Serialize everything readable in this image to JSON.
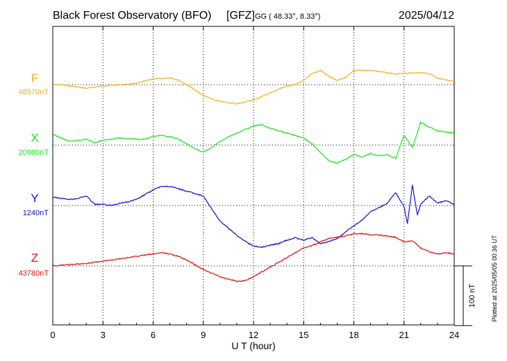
{
  "header": {
    "observatory": "Black Forest Observatory (BFO)",
    "institute": "[GFZ]",
    "coords": "GG ( 48.33°,   8.33°)",
    "date": "2025/04/12"
  },
  "footer": {
    "plotted": "Plotted at 2025/05/05 00:36 UT"
  },
  "scale_bar": {
    "label": "100 nT",
    "value_nT": 100
  },
  "chart_data": {
    "type": "line",
    "xlabel": "U T (hour)",
    "xlim": [
      0,
      24
    ],
    "xticks": [
      0,
      3,
      6,
      9,
      12,
      15,
      18,
      21,
      24
    ],
    "xtick_labels": [
      "0",
      "3",
      "6",
      "9",
      "12",
      "15",
      "18",
      "21",
      "24"
    ],
    "grid": true,
    "series": [
      {
        "name": "F",
        "baseline_label": "48570nT",
        "baseline_nT": 48570,
        "color": "#f0b020",
        "x": [
          0,
          0.5,
          1,
          1.5,
          2,
          2.5,
          3,
          3.5,
          4,
          4.5,
          5,
          5.5,
          6,
          6.5,
          7,
          7.5,
          8,
          8.5,
          9,
          9.5,
          10,
          10.5,
          11,
          11.5,
          12,
          12.5,
          13,
          13.5,
          14,
          14.5,
          15,
          15.5,
          16,
          16.5,
          17,
          17.5,
          18,
          18.5,
          19,
          19.5,
          20,
          20.5,
          21,
          21.5,
          22,
          22.5,
          23,
          23.5,
          24
        ],
        "y": [
          48570,
          48570,
          48568,
          48566,
          48564,
          48566,
          48568,
          48569,
          48570,
          48571,
          48572,
          48576,
          48580,
          48580,
          48582,
          48578,
          48570,
          48561,
          48552,
          48546,
          48542,
          48540,
          48538,
          48541,
          48545,
          48550,
          48556,
          48562,
          48568,
          48570,
          48577,
          48588,
          48594,
          48584,
          48577,
          48582,
          48594,
          48594,
          48594,
          48592,
          48590,
          48588,
          48589,
          48590,
          48590,
          48588,
          48581,
          48578,
          48576
        ]
      },
      {
        "name": "X",
        "baseline_label": "20980nT",
        "baseline_nT": 20980,
        "color": "#20e020",
        "x": [
          0,
          0.5,
          1,
          1.5,
          2,
          2.5,
          3,
          3.5,
          4,
          4.5,
          5,
          5.5,
          6,
          6.5,
          7,
          7.5,
          8,
          8.5,
          9,
          9.5,
          10,
          10.5,
          11,
          11.5,
          12,
          12.5,
          13,
          13.5,
          14,
          14.5,
          15,
          15.5,
          16,
          16.5,
          17,
          17.5,
          18,
          18.5,
          19,
          19.5,
          20,
          20.5,
          21,
          21.5,
          22,
          22.5,
          23,
          23.5,
          24
        ],
        "y": [
          20998,
          20992,
          20986,
          20988,
          20990,
          20984,
          20988,
          20990,
          20992,
          20991,
          20990,
          20990,
          20994,
          20996,
          20994,
          20990,
          20982,
          20974,
          20968,
          20976,
          20986,
          20994,
          21000,
          21006,
          21012,
          21014,
          21008,
          21004,
          21000,
          20996,
          20992,
          20982,
          20968,
          20954,
          20950,
          20956,
          20964,
          20960,
          20966,
          20962,
          20964,
          20958,
          20996,
          20976,
          21018,
          21010,
          21004,
          21002,
          21000
        ]
      },
      {
        "name": "Y",
        "baseline_label": "1240nT",
        "baseline_nT": 1240,
        "color": "#1010d0",
        "x": [
          0,
          0.5,
          1,
          1.5,
          2,
          2.5,
          3,
          3.5,
          4,
          4.5,
          5,
          5.5,
          6,
          6.5,
          7,
          7.5,
          8,
          8.5,
          9,
          9.5,
          10,
          10.5,
          11,
          11.5,
          12,
          12.5,
          13,
          13.5,
          14,
          14.5,
          15,
          15.5,
          16,
          16.5,
          17,
          17.5,
          18,
          18.5,
          19,
          19.5,
          20,
          20.5,
          21,
          21.2,
          21.5,
          21.8,
          22,
          22.5,
          23,
          23.5,
          24
        ],
        "y": [
          1254,
          1252,
          1250,
          1252,
          1256,
          1242,
          1242,
          1240,
          1244,
          1246,
          1250,
          1258,
          1266,
          1272,
          1272,
          1268,
          1264,
          1260,
          1256,
          1234,
          1214,
          1202,
          1190,
          1180,
          1172,
          1170,
          1174,
          1176,
          1182,
          1186,
          1182,
          1186,
          1176,
          1180,
          1184,
          1196,
          1206,
          1216,
          1230,
          1236,
          1244,
          1262,
          1238,
          1210,
          1274,
          1224,
          1242,
          1256,
          1244,
          1248,
          1242
        ]
      },
      {
        "name": "Z",
        "baseline_label": "43780nT",
        "baseline_nT": 43780,
        "color": "#e01010",
        "x": [
          0,
          0.5,
          1,
          1.5,
          2,
          2.5,
          3,
          3.5,
          4,
          4.5,
          5,
          5.5,
          6,
          6.5,
          7,
          7.5,
          8,
          8.5,
          9,
          9.5,
          10,
          10.5,
          11,
          11.5,
          12,
          12.5,
          13,
          13.5,
          14,
          14.5,
          15,
          15.5,
          16,
          16.5,
          17,
          17.5,
          18,
          18.5,
          19,
          19.5,
          20,
          20.5,
          21,
          21.5,
          22,
          22.5,
          23,
          23.5,
          24
        ],
        "y": [
          43780,
          43781,
          43782,
          43783,
          43784,
          43786,
          43788,
          43790,
          43792,
          43794,
          43796,
          43798,
          43800,
          43802,
          43800,
          43796,
          43790,
          43782,
          43774,
          43768,
          43762,
          43758,
          43754,
          43755,
          43762,
          43770,
          43778,
          43786,
          43794,
          43802,
          43810,
          43814,
          43820,
          43826,
          43828,
          43830,
          43834,
          43834,
          43832,
          43832,
          43830,
          43828,
          43820,
          43822,
          43810,
          43804,
          43800,
          43802,
          43800
        ]
      }
    ]
  }
}
